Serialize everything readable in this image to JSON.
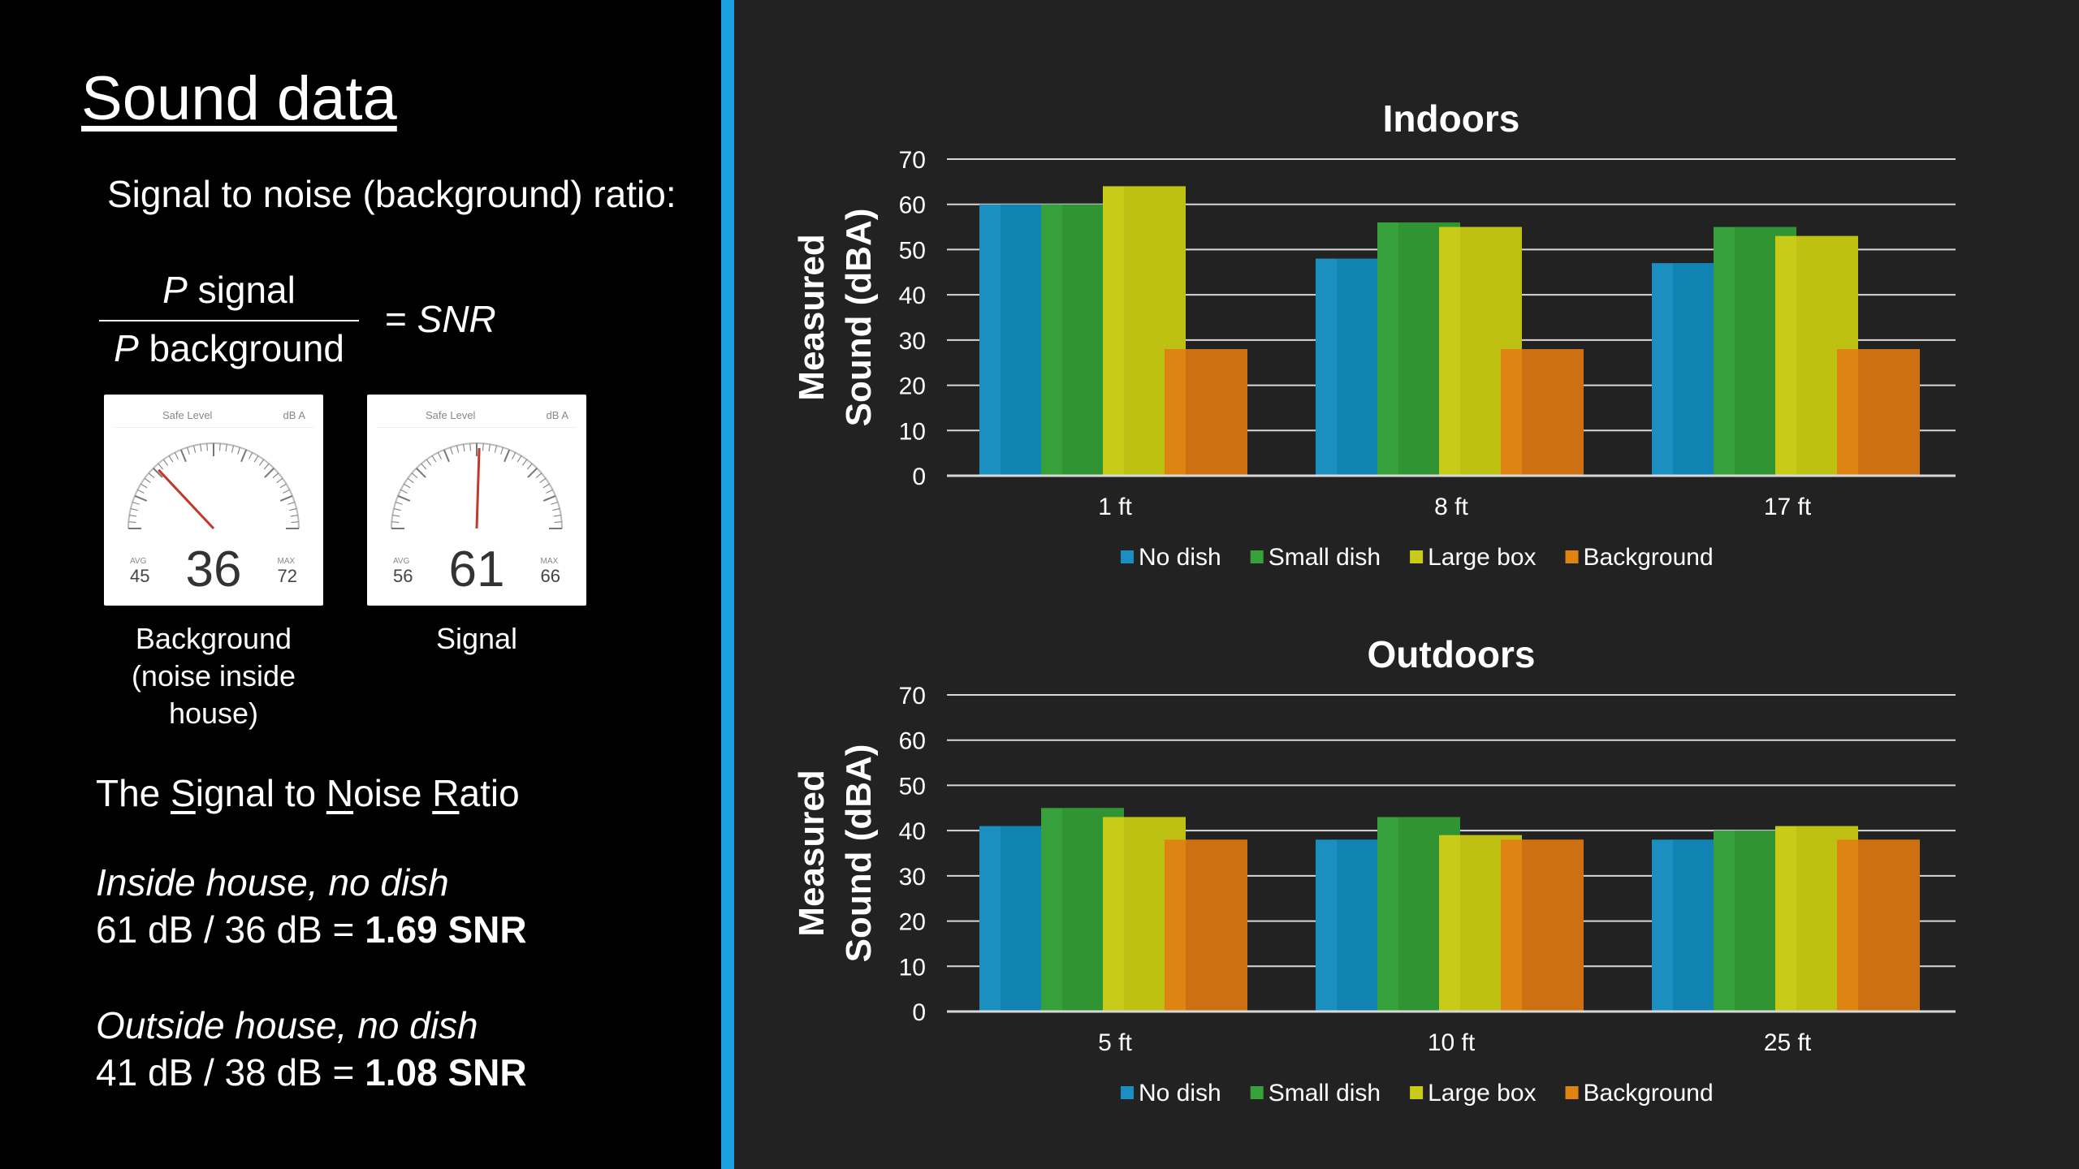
{
  "left": {
    "title": "Sound data",
    "subtitle": "Signal to noise (background) ratio:",
    "formula": {
      "num_p": "P",
      "num_text": " signal",
      "den_p": "P",
      "den_text": " background",
      "eq_sign": "=",
      "eq_text": " SNR"
    },
    "meters": [
      {
        "header_left": "Safe Level",
        "header_right": "dB A",
        "value": "36",
        "avg_label": "AVG",
        "avg": "45",
        "max_label": "MAX",
        "max": "72",
        "needle": 36,
        "caption": "Background (noise inside house)"
      },
      {
        "header_left": "Safe Level",
        "header_right": "dB A",
        "value": "61",
        "avg_label": "AVG",
        "avg": "56",
        "max_label": "MAX",
        "max": "66",
        "needle": 61,
        "caption": "Signal"
      }
    ],
    "snr_heading": {
      "p1": "The ",
      "s": "S",
      "p2": "ignal to ",
      "n": "N",
      "p3": "oise ",
      "r": "R",
      "p4": "atio"
    },
    "case1": {
      "title": "Inside house, no dish",
      "line": "61 dB / 36 dB = ",
      "result": "1.69 SNR"
    },
    "case2": {
      "title": "Outside house, no dish",
      "line": "41 dB / 38 dB = ",
      "result": "1.08 SNR"
    }
  },
  "colors": {
    "accent": "#1ba1e2",
    "No dish": "#1a8fc0",
    "Small dish": "#36a03a",
    "Large box": "#c8cc18",
    "Background": "#de8412"
  },
  "chart_data": [
    {
      "type": "bar",
      "title": "Indoors",
      "ylabel": "Measured Sound (dBA)",
      "categories": [
        "1 ft",
        "8 ft",
        "17 ft"
      ],
      "ylim": [
        0,
        70
      ],
      "yticks": [
        0,
        10,
        20,
        30,
        40,
        50,
        60,
        70
      ],
      "grid": true,
      "legend": "bottom",
      "series": [
        {
          "name": "No dish",
          "values": [
            60,
            48,
            47
          ]
        },
        {
          "name": "Small dish",
          "values": [
            60,
            56,
            55
          ]
        },
        {
          "name": "Large box",
          "values": [
            64,
            55,
            53
          ]
        },
        {
          "name": "Background",
          "values": [
            28,
            28,
            28
          ]
        }
      ]
    },
    {
      "type": "bar",
      "title": "Outdoors",
      "ylabel": "Measured Sound (dBA)",
      "categories": [
        "5 ft",
        "10 ft",
        "25 ft"
      ],
      "ylim": [
        0,
        70
      ],
      "yticks": [
        0,
        10,
        20,
        30,
        40,
        50,
        60,
        70
      ],
      "grid": true,
      "legend": "bottom",
      "series": [
        {
          "name": "No dish",
          "values": [
            41,
            38,
            38
          ]
        },
        {
          "name": "Small dish",
          "values": [
            45,
            43,
            40
          ]
        },
        {
          "name": "Large box",
          "values": [
            43,
            39,
            41
          ]
        },
        {
          "name": "Background",
          "values": [
            38,
            38,
            38
          ]
        }
      ]
    }
  ]
}
